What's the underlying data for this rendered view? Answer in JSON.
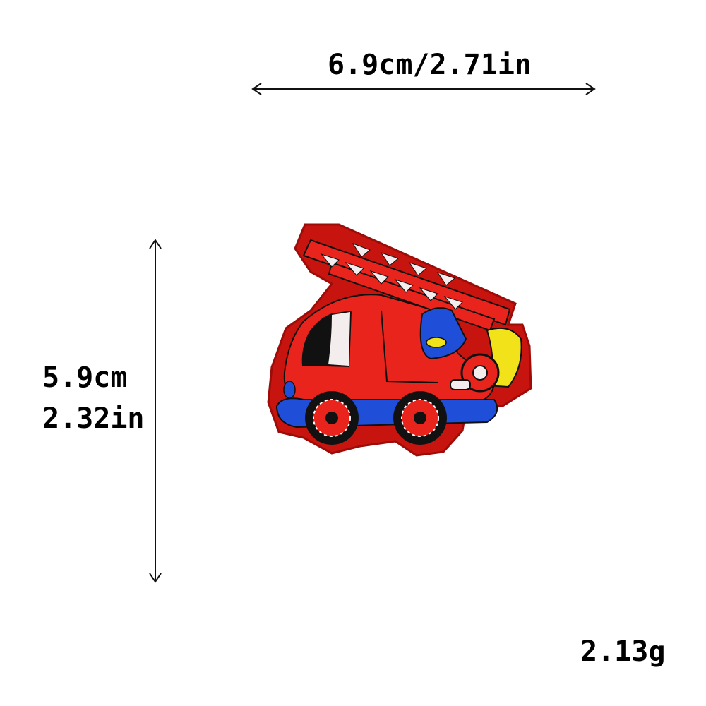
{
  "dimensions": {
    "width_label": "6.9cm/2.71in",
    "height_label_cm": "5.9cm",
    "height_label_in": "2.32in"
  },
  "weight_label": "2.13g",
  "colors": {
    "patch_red": "#e8241d",
    "border_red": "#c8140f",
    "accent_blue": "#1f4fd8",
    "accent_yellow": "#f2e21a",
    "outline_black": "#111111"
  }
}
